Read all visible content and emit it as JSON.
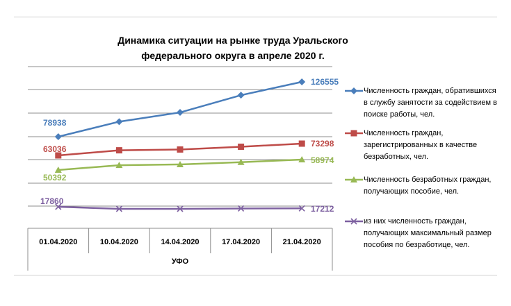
{
  "chart_data": {
    "type": "line",
    "title": "Динамика ситуации  на рынке труда Уральского федерального округа в апреле 2020 г.",
    "categories": [
      "01.04.2020",
      "10.04.2020",
      "14.04.2020",
      "17.04.2020",
      "21.04.2020"
    ],
    "xlabel": "УФО",
    "grid": true,
    "legend_position": "right",
    "series": [
      {
        "name": "Численность граждан, обратившихся в службу занятости за содействием в поиске работы, чел.",
        "values": [
          78938,
          92000,
          100000,
          115000,
          126555
        ],
        "color": "#4a7ebb",
        "marker": "diamond",
        "labels": {
          "first": "78938",
          "last": "126555"
        }
      },
      {
        "name": "Численность граждан, зарегистрированных в качестве безработных, чел.",
        "values": [
          63036,
          67500,
          68200,
          70600,
          73298
        ],
        "color": "#be4b48",
        "marker": "square",
        "labels": {
          "first": "63036",
          "last": "73298"
        }
      },
      {
        "name": "Численность безработных граждан, получающих пособие, чел.",
        "values": [
          50392,
          54300,
          55000,
          56800,
          58974
        ],
        "color": "#98b954",
        "marker": "triangle",
        "labels": {
          "first": "50392",
          "last": "58974"
        }
      },
      {
        "name": "из них численность граждан, получающих максимальный размер пособия по безработице, чел.",
        "values": [
          17860,
          16900,
          16900,
          17150,
          17212
        ],
        "color": "#7d60a0",
        "marker": "x",
        "labels": {
          "first": "17860",
          "last": "17212"
        }
      }
    ]
  }
}
